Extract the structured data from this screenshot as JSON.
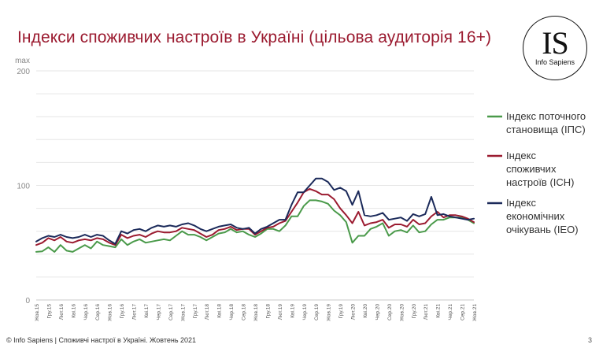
{
  "slide": {
    "title": "Індекси споживчих настроїв в Україні (цільова аудиторія 16+)",
    "footer": "© Info Sapiens | Споживчі настрої в Україні. Жовтень 2021",
    "page_number": "3",
    "logo": {
      "mark": "IS",
      "name": "Info Sapiens"
    }
  },
  "chart_data": {
    "type": "line",
    "y_axis_top_label": "max",
    "ylim": [
      0,
      200
    ],
    "yticks": [
      0,
      100,
      200
    ],
    "grid": true,
    "legend_position": "right",
    "x": [
      "Жов.15",
      "Лис.15",
      "Гру.15",
      "Січ.16",
      "Лют.16",
      "Бер.16",
      "Кві.16",
      "Тра.16",
      "Чер.16",
      "Лип.16",
      "Сер.16",
      "Вер.16",
      "Жов.16",
      "Лис.16",
      "Гру.16",
      "Січ.17",
      "Лют.17",
      "Бер.17",
      "Кві.17",
      "Тра.17",
      "Чер.17",
      "Лип.17",
      "Сер.17",
      "Вер.17",
      "Жов.17",
      "Лис.17",
      "Гру.17",
      "Січ.18",
      "Лют.18",
      "Бер.18",
      "Кві.18",
      "Тра.18",
      "Чер.18",
      "Лип.18",
      "Сер.18",
      "Вер.18",
      "Жов.18",
      "Лис.18",
      "Гру.18",
      "Січ.19",
      "Лют.19",
      "Бер.19",
      "Кві.19",
      "Тра.19",
      "Чер.19",
      "Лип.19",
      "Сер.19",
      "Вер.19",
      "Жов.19",
      "Лис.19",
      "Гру.19",
      "Січ.20",
      "Лют.20",
      "Бер.20",
      "Кві.20",
      "Тра.20",
      "Чер.20",
      "Лип.20",
      "Сер.20",
      "Вер.20",
      "Жов.20",
      "Лис.20",
      "Гру.20",
      "Січ.21",
      "Лют.21",
      "Бер.21",
      "Кві.21",
      "Тра.21",
      "Чер.21",
      "Лип.21",
      "Сер.21",
      "Вер.21",
      "Жов.21"
    ],
    "xtick_labels": [
      "Жов.15",
      "Гру.15",
      "Лют.16",
      "Кві.16",
      "Чер.16",
      "Сер.16",
      "Жов.16",
      "Гру.16",
      "Лют.17",
      "Кві.17",
      "Чер.17",
      "Сер.17",
      "Жов.17",
      "Гру.17",
      "Лют.18",
      "Кві.18",
      "Чер.18",
      "Сер.18",
      "Жов.18",
      "Гру.18",
      "Лют.19",
      "Кві.19",
      "Чер.19",
      "Сер.19",
      "Жов.19",
      "Гру.19",
      "Лют.20",
      "Кві.20",
      "Чер.20",
      "Сер.20",
      "Жов.20",
      "Гру.20",
      "Лют.21",
      "Кві.21",
      "Чер.21",
      "Сер.21",
      "Жов.21"
    ],
    "series": [
      {
        "name": "Індекс поточного становища (ІПС)",
        "color": "#4a9a4a",
        "values": [
          42,
          42.5,
          46,
          42,
          48,
          43,
          42,
          45,
          48,
          45,
          51,
          48,
          47,
          46,
          53,
          48,
          51,
          53,
          50,
          51,
          52,
          53,
          52,
          56,
          60,
          57,
          57,
          55,
          52,
          55,
          58,
          59,
          62,
          59,
          60,
          57,
          55,
          58,
          62,
          62,
          60,
          65,
          73,
          73,
          82,
          87,
          87,
          86,
          84,
          78,
          74,
          68,
          50,
          56,
          56,
          62,
          64,
          67,
          56,
          60,
          61,
          59,
          65,
          59,
          60,
          66,
          70,
          70,
          72,
          72,
          72,
          70,
          67
        ]
      },
      {
        "name": "Індекс споживчих настроїв (ІСН)",
        "color": "#9b1b30",
        "values": [
          48,
          50,
          54,
          52,
          55,
          51,
          50,
          52,
          53,
          52,
          54,
          53,
          50,
          48,
          57,
          54,
          56,
          57,
          55,
          58,
          60,
          59,
          59,
          60,
          63,
          62,
          61,
          58,
          55,
          57,
          61,
          62,
          64,
          61,
          62,
          62,
          57,
          60,
          63,
          64,
          67,
          69,
          77,
          85,
          94,
          97,
          95,
          92,
          92,
          88,
          80,
          74,
          67,
          77,
          65,
          67,
          68,
          70,
          63,
          66,
          66,
          64,
          70,
          66,
          67,
          73,
          77,
          72,
          74,
          74,
          73,
          71,
          68
        ]
      },
      {
        "name": "Індекс економічних очікувань (ІЕО)",
        "color": "#1b2a5a",
        "values": [
          51,
          54,
          56,
          55,
          57,
          55,
          54,
          55,
          57,
          55,
          57,
          56,
          52,
          49,
          60,
          58,
          61,
          62,
          60,
          63,
          65,
          64,
          65,
          64,
          66,
          67,
          65,
          62,
          60,
          62,
          64,
          65,
          66,
          63,
          62,
          63,
          58,
          62,
          64,
          67,
          70,
          70,
          83,
          94,
          94,
          100,
          106,
          106,
          103,
          96,
          98,
          95,
          83,
          95,
          74,
          73,
          74,
          76,
          70,
          71,
          72,
          69,
          75,
          73,
          75,
          90,
          74,
          75,
          73,
          72,
          71,
          70,
          71
        ]
      }
    ]
  }
}
